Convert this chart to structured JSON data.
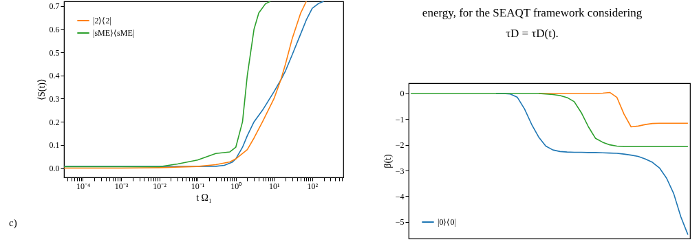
{
  "chart_data": [
    {
      "type": "line",
      "xlabel": "t Ω₁",
      "ylabel": "⟨S(t)⟩",
      "log": "x",
      "legend": "top left",
      "grid": false,
      "marker": "none",
      "line_style": "solid",
      "xlim": [
        3.2e-05,
        650
      ],
      "ylim": [
        -0.04,
        0.72
      ],
      "xticks": [
        {
          "value": 4e-05,
          "label": null
        },
        {
          "value": 5e-05,
          "label": null
        },
        {
          "value": 6e-05,
          "label": null
        },
        {
          "value": 7e-05,
          "label": null
        },
        {
          "value": 8e-05,
          "label": null
        },
        {
          "value": 9e-05,
          "label": null
        },
        {
          "value": 0.0001,
          "label": "10⁻⁴"
        },
        {
          "value": 0.0002,
          "label": null
        },
        {
          "value": 0.0003,
          "label": null
        },
        {
          "value": 0.0004,
          "label": null
        },
        {
          "value": 0.0005,
          "label": null
        },
        {
          "value": 0.0006,
          "label": null
        },
        {
          "value": 0.0007,
          "label": null
        },
        {
          "value": 0.0008,
          "label": null
        },
        {
          "value": 0.0009,
          "label": null
        },
        {
          "value": 0.001,
          "label": "10⁻³"
        },
        {
          "value": 0.002,
          "label": null
        },
        {
          "value": 0.003,
          "label": null
        },
        {
          "value": 0.004,
          "label": null
        },
        {
          "value": 0.005,
          "label": null
        },
        {
          "value": 0.006,
          "label": null
        },
        {
          "value": 0.007,
          "label": null
        },
        {
          "value": 0.008,
          "label": null
        },
        {
          "value": 0.009,
          "label": null
        },
        {
          "value": 0.01,
          "label": "10⁻²"
        },
        {
          "value": 0.02,
          "label": null
        },
        {
          "value": 0.03,
          "label": null
        },
        {
          "value": 0.04,
          "label": null
        },
        {
          "value": 0.05,
          "label": null
        },
        {
          "value": 0.06,
          "label": null
        },
        {
          "value": 0.07,
          "label": null
        },
        {
          "value": 0.08,
          "label": null
        },
        {
          "value": 0.09,
          "label": null
        },
        {
          "value": 0.1,
          "label": "10⁻¹"
        },
        {
          "value": 0.2,
          "label": null
        },
        {
          "value": 0.3,
          "label": null
        },
        {
          "value": 0.4,
          "label": null
        },
        {
          "value": 0.5,
          "label": null
        },
        {
          "value": 0.6,
          "label": null
        },
        {
          "value": 0.7,
          "label": null
        },
        {
          "value": 0.8,
          "label": null
        },
        {
          "value": 0.9,
          "label": null
        },
        {
          "value": 1,
          "label": "10⁰"
        },
        {
          "value": 2,
          "label": null
        },
        {
          "value": 3,
          "label": null
        },
        {
          "value": 4,
          "label": null
        },
        {
          "value": 5,
          "label": null
        },
        {
          "value": 6,
          "label": null
        },
        {
          "value": 7,
          "label": null
        },
        {
          "value": 8,
          "label": null
        },
        {
          "value": 9,
          "label": null
        },
        {
          "value": 10,
          "label": "10¹"
        },
        {
          "value": 20,
          "label": null
        },
        {
          "value": 30,
          "label": null
        },
        {
          "value": 40,
          "label": null
        },
        {
          "value": 50,
          "label": null
        },
        {
          "value": 60,
          "label": null
        },
        {
          "value": 70,
          "label": null
        },
        {
          "value": 80,
          "label": null
        },
        {
          "value": 90,
          "label": null
        },
        {
          "value": 100,
          "label": "10²"
        },
        {
          "value": 200,
          "label": null
        },
        {
          "value": 300,
          "label": null
        },
        {
          "value": 400,
          "label": null
        },
        {
          "value": 500,
          "label": null
        },
        {
          "value": 600,
          "label": null
        }
      ],
      "yticks": [
        {
          "value": 0,
          "label": "0.0"
        },
        {
          "value": 0.1,
          "label": "0.1"
        },
        {
          "value": 0.2,
          "label": "0.2"
        },
        {
          "value": 0.3,
          "label": "0.3"
        },
        {
          "value": 0.4,
          "label": "0.4"
        },
        {
          "value": 0.5,
          "label": "0.5"
        },
        {
          "value": 0.6,
          "label": "0.6"
        },
        {
          "value": 0.7,
          "label": "0.7"
        }
      ],
      "annotations": [
        "c)"
      ],
      "series": [
        {
          "color": "#1f77b4",
          "x": [
            3.2e-05,
            0.001,
            0.01,
            0.3,
            0.5,
            0.8,
            1,
            1.5,
            2,
            3,
            5,
            10,
            15,
            20,
            30,
            50,
            70,
            100,
            150,
            200
          ],
          "values": [
            0.007,
            0.007,
            0.007,
            0.008,
            0.012,
            0.025,
            0.04,
            0.09,
            0.14,
            0.2,
            0.25,
            0.33,
            0.38,
            0.42,
            0.49,
            0.58,
            0.64,
            0.69,
            0.712,
            0.72
          ]
        },
        {
          "name": "|2⟩⟨2|",
          "color": "#ff7f0e",
          "x": [
            3.2e-05,
            0.001,
            0.01,
            0.1,
            0.3,
            0.7,
            1,
            2,
            3,
            5,
            10,
            15,
            20,
            30,
            50,
            70
          ],
          "values": [
            0.0,
            0.0,
            0.002,
            0.007,
            0.015,
            0.027,
            0.04,
            0.08,
            0.13,
            0.2,
            0.3,
            0.38,
            0.45,
            0.56,
            0.67,
            0.72
          ]
        },
        {
          "name": "|sME⟩⟨sME|",
          "color": "#2ca02c",
          "x": [
            3.2e-05,
            0.001,
            0.01,
            0.03,
            0.1,
            0.3,
            0.7,
            1,
            1.5,
            2,
            3,
            4,
            6,
            8
          ],
          "values": [
            0.006,
            0.006,
            0.006,
            0.018,
            0.035,
            0.063,
            0.07,
            0.09,
            0.2,
            0.4,
            0.6,
            0.67,
            0.71,
            0.72
          ]
        }
      ]
    },
    {
      "type": "line",
      "ylabel": "β(t)",
      "legend": "bottom left",
      "grid": false,
      "marker": "none",
      "line_style": "solid",
      "tick_labels": "y",
      "categories": [
        null,
        null,
        null,
        null,
        null,
        null,
        null,
        null,
        null,
        null,
        null,
        null,
        null,
        null,
        null,
        null,
        null,
        null,
        null,
        null,
        null,
        null,
        null,
        null,
        null,
        null,
        null,
        null,
        null,
        null,
        null,
        null,
        null,
        null,
        null,
        null,
        null,
        null,
        null,
        null
      ],
      "ylim": [
        -5.65,
        0.4
      ],
      "yticks": [
        {
          "value": 0,
          "label": "0"
        },
        {
          "value": -1,
          "label": "−1"
        },
        {
          "value": -2,
          "label": "−2"
        },
        {
          "value": -3,
          "label": "−3"
        },
        {
          "value": -4,
          "label": "−4"
        },
        {
          "value": -5,
          "label": "−5"
        }
      ],
      "annotations": [
        "energy, for the SEAQT framework considering",
        "τD = τD(t)."
      ],
      "series": [
        {
          "name": "|0⟩⟨0|",
          "color": "#1f77b4",
          "values": [
            null,
            null,
            null,
            null,
            null,
            null,
            null,
            null,
            null,
            null,
            null,
            null,
            0,
            0,
            -0.02,
            -0.15,
            -0.6,
            -1.2,
            -1.7,
            -2.05,
            -2.2,
            -2.26,
            -2.28,
            -2.29,
            -2.29,
            -2.3,
            -2.3,
            -2.31,
            -2.32,
            -2.33,
            -2.36,
            -2.4,
            -2.45,
            -2.55,
            -2.68,
            -2.9,
            -3.3,
            -3.9,
            -4.8,
            -5.5
          ]
        },
        {
          "color": "#ff7f0e",
          "values": [
            null,
            null,
            null,
            null,
            null,
            null,
            null,
            null,
            null,
            null,
            null,
            null,
            null,
            null,
            null,
            null,
            null,
            null,
            0,
            0,
            0,
            0,
            0,
            0,
            0,
            0,
            0,
            0.01,
            0.04,
            -0.15,
            -0.8,
            -1.3,
            -1.27,
            -1.21,
            -1.17,
            -1.16,
            -1.16,
            -1.16,
            -1.16,
            -1.16
          ]
        },
        {
          "color": "#2ca02c",
          "values": [
            0,
            0,
            0,
            0,
            0,
            0,
            0,
            0,
            0,
            0,
            0,
            0,
            0,
            0,
            0,
            0,
            0,
            0,
            0,
            -0.02,
            -0.04,
            -0.08,
            -0.16,
            -0.32,
            -0.75,
            -1.3,
            -1.75,
            -1.9,
            -2.0,
            -2.05,
            -2.07,
            -2.07,
            -2.07,
            -2.07,
            -2.07,
            -2.07,
            -2.07,
            -2.07,
            -2.07,
            -2.07
          ]
        }
      ]
    }
  ]
}
